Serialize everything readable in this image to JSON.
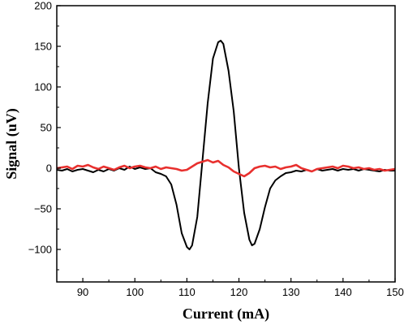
{
  "chart_data": {
    "type": "line",
    "xlabel": "Current (mA)",
    "ylabel": "Signal (uV)",
    "xlim": [
      85,
      150
    ],
    "ylim": [
      -140,
      200
    ],
    "xticks": [
      90,
      100,
      110,
      120,
      130,
      140,
      150
    ],
    "yticks": [
      -100,
      -50,
      0,
      50,
      100,
      150,
      200
    ],
    "ytick_labels": [
      "−100",
      "−50",
      "0",
      "50",
      "100",
      "150",
      "200"
    ],
    "grid": false,
    "legend": "none",
    "series": [
      {
        "color": "#000000",
        "x": [
          85,
          86,
          87,
          88,
          89,
          90,
          91,
          92,
          93,
          94,
          95,
          96,
          97,
          98,
          99,
          100,
          101,
          102,
          103,
          104,
          105,
          106,
          107,
          108,
          109,
          110,
          110.5,
          111,
          112,
          113,
          114,
          115,
          116,
          116.5,
          117,
          118,
          119,
          120,
          121,
          122,
          122.5,
          123,
          124,
          125,
          126,
          127,
          128,
          129,
          130,
          131,
          132,
          133,
          134,
          135,
          136,
          137,
          138,
          139,
          140,
          141,
          142,
          143,
          144,
          145,
          146,
          147,
          148,
          149,
          150
        ],
        "y": [
          -2,
          -3,
          -1,
          -4,
          -2,
          -1,
          -3,
          -5,
          -2,
          -4,
          -1,
          -3,
          0,
          -2,
          2,
          -1,
          1,
          -1,
          0,
          -5,
          -7,
          -10,
          -20,
          -45,
          -80,
          -97,
          -100,
          -95,
          -60,
          10,
          80,
          135,
          155,
          157,
          153,
          120,
          70,
          0,
          -55,
          -88,
          -95,
          -93,
          -75,
          -48,
          -25,
          -15,
          -10,
          -6,
          -5,
          -3,
          -4,
          -2,
          -4,
          -1,
          -3,
          -2,
          -1,
          -3,
          -1,
          -2,
          -1,
          -3,
          -1,
          -2,
          -3,
          -4,
          -2,
          -3,
          -3
        ]
      },
      {
        "color": "#e8302e",
        "x": [
          85,
          86,
          87,
          88,
          89,
          90,
          91,
          92,
          93,
          94,
          95,
          96,
          97,
          98,
          99,
          100,
          101,
          102,
          103,
          104,
          105,
          106,
          107,
          108,
          109,
          110,
          111,
          112,
          113,
          114,
          115,
          116,
          117,
          118,
          119,
          120,
          121,
          122,
          123,
          124,
          125,
          126,
          127,
          128,
          129,
          130,
          131,
          132,
          133,
          134,
          135,
          136,
          137,
          138,
          139,
          140,
          141,
          142,
          143,
          144,
          145,
          146,
          147,
          148,
          149,
          150
        ],
        "y": [
          0,
          1,
          2,
          -1,
          3,
          2,
          4,
          1,
          -1,
          2,
          0,
          -2,
          1,
          3,
          0,
          2,
          3,
          1,
          0,
          2,
          -1,
          1,
          0,
          -1,
          -3,
          -2,
          2,
          6,
          8,
          10,
          7,
          9,
          4,
          1,
          -4,
          -7,
          -10,
          -6,
          0,
          2,
          3,
          1,
          2,
          -1,
          1,
          2,
          4,
          0,
          -2,
          -4,
          -1,
          0,
          1,
          2,
          0,
          3,
          2,
          0,
          1,
          -1,
          0,
          -2,
          -1,
          -3,
          -2,
          -1
        ]
      }
    ]
  }
}
